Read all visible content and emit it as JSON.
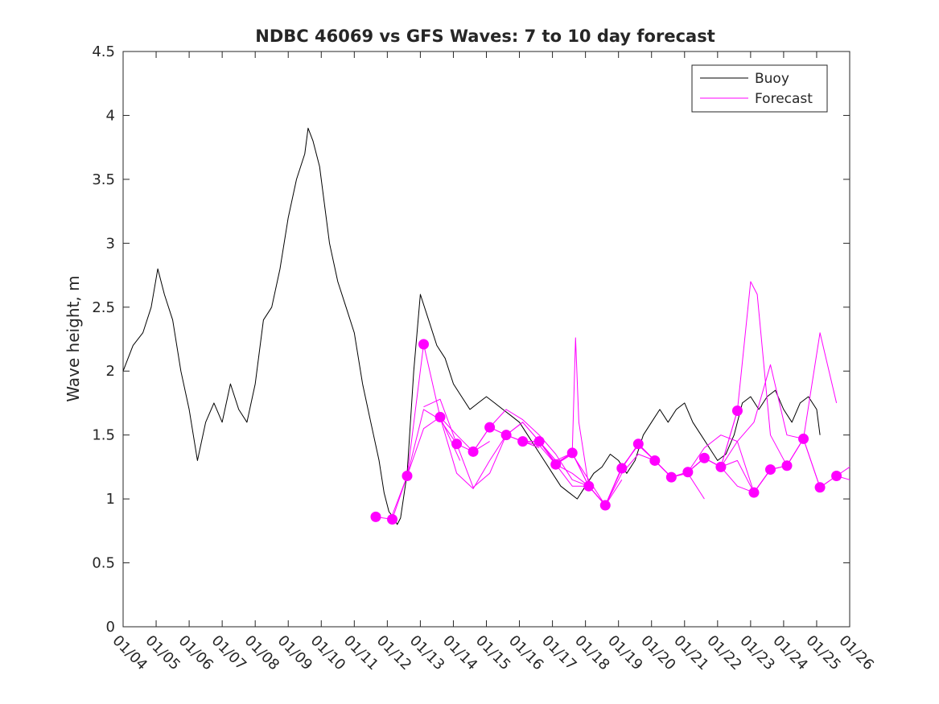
{
  "chart_data": {
    "type": "line",
    "title": "NDBC 46069 vs GFS Waves: 7 to 10 day forecast",
    "xlabel": "",
    "ylabel": "Wave height, m",
    "x_unit": "days since 01/04",
    "xlim": [
      0,
      22
    ],
    "ylim": [
      0,
      4.5
    ],
    "y_ticks": [
      "0",
      "0.5",
      "1",
      "1.5",
      "2",
      "2.5",
      "3",
      "3.5",
      "4",
      "4.5"
    ],
    "y_tick_values": [
      0,
      0.5,
      1,
      1.5,
      2,
      2.5,
      3,
      3.5,
      4,
      4.5
    ],
    "x_ticks": [
      "01/04",
      "01/05",
      "01/06",
      "01/07",
      "01/08",
      "01/09",
      "01/10",
      "01/11",
      "01/12",
      "01/13",
      "01/14",
      "01/15",
      "01/16",
      "01/17",
      "01/18",
      "01/19",
      "01/20",
      "01/21",
      "01/22",
      "01/23",
      "01/24",
      "01/25",
      "01/26"
    ],
    "x_tick_values": [
      0,
      1,
      2,
      3,
      4,
      5,
      6,
      7,
      8,
      9,
      10,
      11,
      12,
      13,
      14,
      15,
      16,
      17,
      18,
      19,
      20,
      21,
      22
    ],
    "legend": {
      "placement": "top-right",
      "entries": [
        {
          "label": "Buoy",
          "color": "#000000"
        },
        {
          "label": "Forecast",
          "color": "#ff00ff"
        }
      ]
    },
    "colors": {
      "buoy": "#000000",
      "forecast": "#ff00ff",
      "axis": "#262626"
    },
    "series": [
      {
        "name": "Buoy",
        "x": [
          0,
          0.3,
          0.6,
          0.85,
          1.05,
          1.25,
          1.5,
          1.75,
          2.0,
          2.25,
          2.5,
          2.75,
          3.0,
          3.25,
          3.5,
          3.75,
          4.0,
          4.25,
          4.5,
          4.75,
          5.0,
          5.25,
          5.5,
          5.6,
          5.75,
          5.95,
          6.25,
          6.5,
          6.75,
          7.0,
          7.25,
          7.5,
          7.75,
          7.9,
          8.05,
          8.2,
          8.3,
          8.4,
          8.6,
          8.8,
          9.0,
          9.25,
          9.5,
          9.75,
          10.0,
          10.25,
          10.5,
          10.75,
          11.0,
          11.25,
          11.5,
          11.75,
          12.0,
          12.25,
          12.5,
          12.75,
          13.0,
          13.25,
          13.5,
          13.75,
          14.0,
          14.25,
          14.5,
          14.75,
          15.0,
          15.25,
          15.5,
          15.75,
          16.0,
          16.25,
          16.5,
          16.75,
          17.0,
          17.25,
          17.5,
          17.75,
          18.0,
          18.25,
          18.5,
          18.75,
          19.0,
          19.25,
          19.5,
          19.75,
          20.0,
          20.25,
          20.5,
          20.75,
          21.0,
          21.1
        ],
        "y": [
          2.0,
          2.2,
          2.3,
          2.5,
          2.8,
          2.6,
          2.4,
          2.0,
          1.7,
          1.3,
          1.6,
          1.75,
          1.6,
          1.9,
          1.7,
          1.6,
          1.9,
          2.4,
          2.5,
          2.8,
          3.2,
          3.5,
          3.7,
          3.9,
          3.8,
          3.6,
          3.0,
          2.7,
          2.5,
          2.3,
          1.9,
          1.6,
          1.3,
          1.05,
          0.9,
          0.85,
          0.8,
          0.85,
          1.2,
          2.0,
          2.6,
          2.4,
          2.2,
          2.1,
          1.9,
          1.8,
          1.7,
          1.75,
          1.8,
          1.75,
          1.7,
          1.65,
          1.6,
          1.5,
          1.4,
          1.3,
          1.2,
          1.1,
          1.05,
          1.0,
          1.1,
          1.2,
          1.25,
          1.35,
          1.3,
          1.2,
          1.3,
          1.5,
          1.6,
          1.7,
          1.6,
          1.7,
          1.75,
          1.6,
          1.5,
          1.4,
          1.3,
          1.35,
          1.5,
          1.75,
          1.8,
          1.7,
          1.8,
          1.85,
          1.7,
          1.6,
          1.75,
          1.8,
          1.7,
          1.5
        ]
      },
      {
        "name": "Forecast 1",
        "x": [
          7.65,
          8.15,
          8.6,
          9.1,
          9.6,
          10.2
        ],
        "y": [
          0.86,
          0.84,
          1.18,
          2.21,
          1.64,
          1.3
        ]
      },
      {
        "name": "Forecast 2",
        "x": [
          8.1,
          8.6,
          9.1,
          9.6,
          10.1,
          10.6,
          11.1
        ],
        "y": [
          0.84,
          1.18,
          1.7,
          1.62,
          1.43,
          1.37,
          1.45
        ]
      },
      {
        "name": "Forecast 3",
        "x": [
          8.6,
          9.1,
          9.6,
          10.1,
          10.6,
          11.1,
          11.6,
          12.1,
          12.6
        ],
        "y": [
          1.18,
          1.55,
          1.64,
          1.2,
          1.08,
          1.3,
          1.5,
          1.45,
          1.4
        ]
      },
      {
        "name": "Forecast 4",
        "x": [
          9.1,
          9.6,
          10.1,
          10.6,
          11.1,
          11.6,
          12.1,
          12.6,
          13.1
        ],
        "y": [
          1.72,
          1.78,
          1.43,
          1.09,
          1.2,
          1.5,
          1.6,
          1.45,
          1.3
        ]
      },
      {
        "name": "Forecast 5",
        "x": [
          9.6,
          10.1,
          10.6,
          11.1,
          11.6,
          12.1,
          12.6,
          13.1,
          13.6,
          14.1
        ],
        "y": [
          1.64,
          1.5,
          1.37,
          1.56,
          1.7,
          1.62,
          1.5,
          1.35,
          1.15,
          1.1
        ]
      },
      {
        "name": "Forecast 6",
        "x": [
          10.6,
          11.1,
          11.6,
          12.1,
          12.6,
          13.1,
          13.6,
          14.1,
          14.6
        ],
        "y": [
          1.37,
          1.56,
          1.5,
          1.45,
          1.45,
          1.27,
          1.1,
          1.1,
          0.95
        ]
      },
      {
        "name": "Forecast 7",
        "x": [
          11.1,
          11.6,
          12.1,
          12.6,
          13.1,
          13.6,
          14.1,
          14.6,
          15.1
        ],
        "y": [
          1.56,
          1.5,
          1.45,
          1.42,
          1.27,
          1.2,
          1.1,
          0.95,
          1.15
        ]
      },
      {
        "name": "Forecast 8",
        "x": [
          11.6,
          12.1,
          12.6,
          13.1,
          13.6,
          14.1,
          14.6,
          15.1,
          15.6,
          16.1
        ],
        "y": [
          1.5,
          1.6,
          1.45,
          1.27,
          1.35,
          1.15,
          0.95,
          1.2,
          1.35,
          1.3
        ]
      },
      {
        "name": "Forecast 9",
        "x": [
          12.1,
          12.6,
          13.1,
          13.6,
          13.7,
          13.8,
          14.1,
          14.6,
          15.1,
          15.6,
          16.1,
          16.6
        ],
        "y": [
          1.45,
          1.45,
          1.3,
          1.36,
          2.26,
          1.6,
          1.1,
          0.95,
          1.25,
          1.42,
          1.3,
          1.17
        ]
      },
      {
        "name": "Forecast 10",
        "x": [
          12.6,
          13.1,
          13.6,
          14.1,
          14.6,
          15.1,
          15.6,
          16.1,
          16.6,
          17.1,
          17.6
        ],
        "y": [
          1.45,
          1.28,
          1.36,
          1.1,
          0.95,
          1.24,
          1.43,
          1.3,
          1.17,
          1.2,
          1.0
        ]
      },
      {
        "name": "Forecast 11",
        "x": [
          13.1,
          13.6,
          14.1,
          14.6,
          15.1,
          15.6,
          16.1,
          16.6,
          17.1,
          17.6,
          18.1
        ],
        "y": [
          1.27,
          1.36,
          1.1,
          0.95,
          1.24,
          1.43,
          1.3,
          1.17,
          1.21,
          1.32,
          1.25
        ]
      },
      {
        "name": "Forecast 12",
        "x": [
          13.6,
          14.1,
          14.6,
          15.1,
          15.6,
          16.1,
          16.6,
          17.1,
          17.6,
          18.1,
          18.6
        ],
        "y": [
          1.36,
          1.1,
          0.95,
          1.24,
          1.43,
          1.3,
          1.17,
          1.21,
          1.32,
          1.25,
          1.69
        ]
      },
      {
        "name": "Forecast 13",
        "x": [
          14.1,
          14.6,
          15.1,
          15.6,
          16.1,
          16.6,
          17.1,
          17.6,
          18.1,
          18.6,
          19.1,
          19.6
        ],
        "y": [
          1.1,
          0.95,
          1.24,
          1.43,
          1.3,
          1.17,
          1.21,
          1.4,
          1.5,
          1.45,
          1.05,
          1.23
        ]
      },
      {
        "name": "Forecast 14",
        "x": [
          15.1,
          15.6,
          16.1,
          16.6,
          17.1,
          17.6,
          18.1,
          18.6,
          19.0,
          19.2,
          19.6,
          20.1
        ],
        "y": [
          1.24,
          1.43,
          1.3,
          1.17,
          1.21,
          1.32,
          1.25,
          1.69,
          2.7,
          2.6,
          1.5,
          1.26
        ]
      },
      {
        "name": "Forecast 15",
        "x": [
          16.1,
          16.6,
          17.1,
          17.6,
          18.1,
          18.6,
          19.1,
          19.6,
          20.1,
          20.6
        ],
        "y": [
          1.3,
          1.17,
          1.21,
          1.32,
          1.25,
          1.45,
          1.6,
          2.05,
          1.5,
          1.47
        ]
      },
      {
        "name": "Forecast 16",
        "x": [
          17.1,
          17.6,
          18.1,
          18.6,
          19.1,
          19.6,
          20.1,
          20.6,
          21.1,
          21.6
        ],
        "y": [
          1.21,
          1.32,
          1.25,
          1.1,
          1.05,
          1.23,
          1.26,
          1.47,
          2.3,
          1.75
        ]
      },
      {
        "name": "Forecast 17",
        "x": [
          18.1,
          18.6,
          19.1,
          19.6,
          20.1,
          20.6,
          21.1,
          21.6,
          22.0
        ],
        "y": [
          1.25,
          1.3,
          1.05,
          1.23,
          1.26,
          1.47,
          1.09,
          1.18,
          1.15
        ]
      },
      {
        "name": "Forecast 18",
        "x": [
          19.1,
          19.6,
          20.1,
          20.6,
          21.1,
          21.6,
          22.0
        ],
        "y": [
          1.05,
          1.23,
          1.26,
          1.47,
          1.09,
          1.18,
          1.25
        ]
      }
    ],
    "markers": {
      "name": "Forecast points",
      "x": [
        7.65,
        8.15,
        8.6,
        9.1,
        9.6,
        10.1,
        10.6,
        11.1,
        11.6,
        12.1,
        12.6,
        13.1,
        13.6,
        14.1,
        14.6,
        15.1,
        15.6,
        16.1,
        16.6,
        17.1,
        17.6,
        18.1,
        18.6,
        19.1,
        19.6,
        20.1,
        20.6,
        21.1,
        21.6
      ],
      "y": [
        0.86,
        0.84,
        1.18,
        2.21,
        1.64,
        1.43,
        1.37,
        1.56,
        1.5,
        1.45,
        1.45,
        1.27,
        1.36,
        1.1,
        0.95,
        1.24,
        1.43,
        1.3,
        1.17,
        1.21,
        1.32,
        1.25,
        1.69,
        1.05,
        1.23,
        1.26,
        1.47,
        1.09,
        1.18
      ]
    }
  }
}
